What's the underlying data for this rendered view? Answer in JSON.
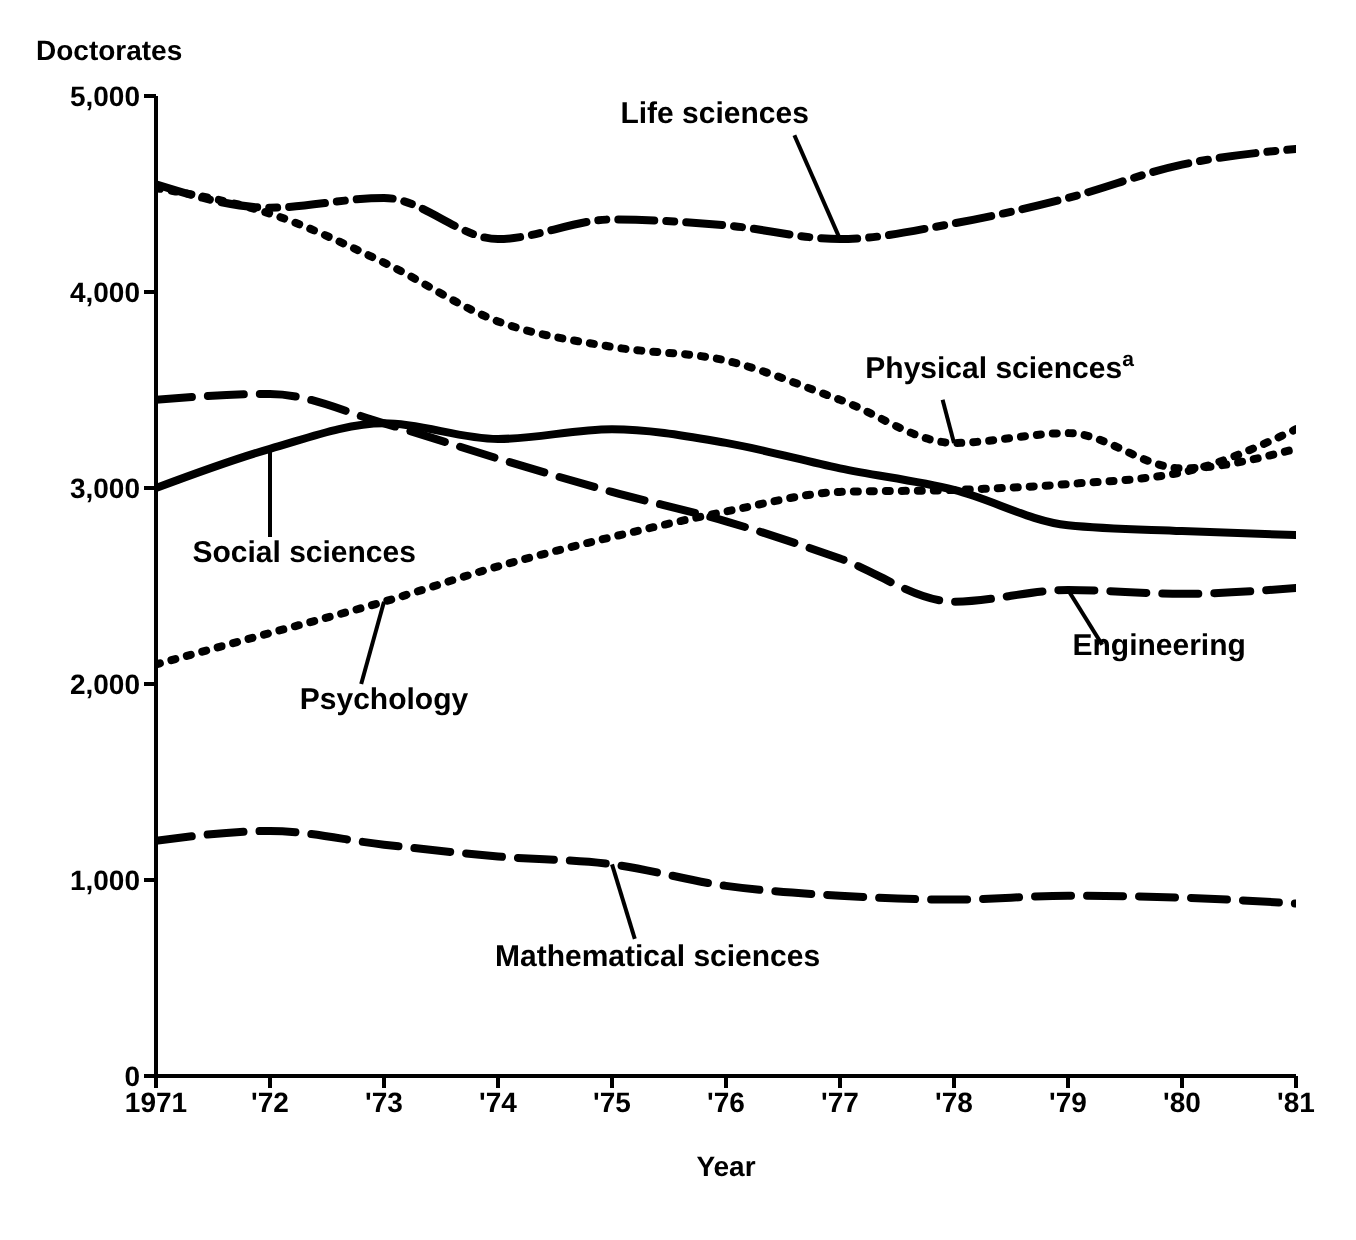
{
  "chart_data": {
    "type": "line",
    "ylabel": "Doctorates",
    "xlabel": "Year",
    "x": [
      1971,
      1972,
      1973,
      1974,
      1975,
      1976,
      1977,
      1978,
      1979,
      1980,
      1981
    ],
    "xlim": [
      1971,
      1981
    ],
    "xticks": [
      {
        "value": 1971,
        "label": "1971"
      },
      {
        "value": 1972,
        "label": "'72"
      },
      {
        "value": 1973,
        "label": "'73"
      },
      {
        "value": 1974,
        "label": "'74"
      },
      {
        "value": 1975,
        "label": "'75"
      },
      {
        "value": 1976,
        "label": "'76"
      },
      {
        "value": 1977,
        "label": "'77"
      },
      {
        "value": 1978,
        "label": "'78"
      },
      {
        "value": 1979,
        "label": "'79"
      },
      {
        "value": 1980,
        "label": "'80"
      },
      {
        "value": 1981,
        "label": "'81"
      }
    ],
    "ylim": [
      0,
      5000
    ],
    "yticks": [
      0,
      {
        "value": 1000,
        "label": "1,000"
      },
      {
        "value": 2000,
        "label": "2,000"
      },
      {
        "value": 3000,
        "label": "3,000"
      },
      {
        "value": 4000,
        "label": "4,000"
      },
      {
        "value": 5000,
        "label": "5,000"
      }
    ],
    "marker": "none",
    "series": [
      {
        "name": "Life sciences",
        "color": "#000000",
        "line_style": "dashdot",
        "values": [
          4550,
          4430,
          4480,
          4270,
          4370,
          4340,
          4270,
          4350,
          4480,
          4650,
          4730
        ]
      },
      {
        "name": "Physical sciences$^{a}$",
        "color": "#000000",
        "line_style": "dotted",
        "values": [
          4530,
          4400,
          4150,
          3850,
          3720,
          3650,
          3450,
          3230,
          3280,
          3100,
          3200
        ]
      },
      {
        "name": "Engineering",
        "color": "#000000",
        "line_style": "dashed",
        "values": [
          3450,
          3480,
          3330,
          3150,
          2980,
          2830,
          2640,
          2420,
          2480,
          2460,
          2490
        ]
      },
      {
        "name": "Social sciences",
        "color": "#000000",
        "line_style": "solid",
        "values": [
          3000,
          3200,
          3330,
          3250,
          3300,
          3230,
          3100,
          2990,
          2810,
          2780,
          2760
        ]
      },
      {
        "name": "Psychology",
        "color": "#000000",
        "line_style": "dotted",
        "values": [
          2100,
          2260,
          2420,
          2600,
          2750,
          2880,
          2980,
          2990,
          3020,
          3080,
          3300
        ]
      },
      {
        "name": "Mathematical sciences",
        "color": "#000000",
        "line_style": "dashed",
        "values": [
          1200,
          1250,
          1180,
          1120,
          1080,
          970,
          920,
          900,
          920,
          910,
          880
        ]
      }
    ]
  }
}
